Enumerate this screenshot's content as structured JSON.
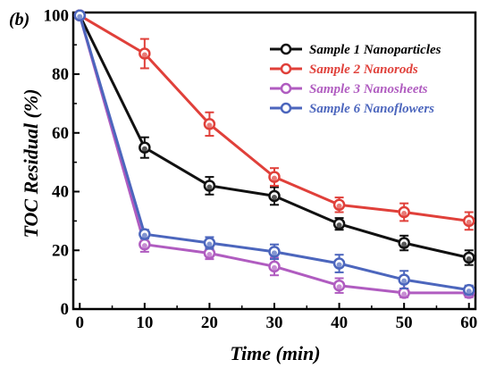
{
  "chart_data": {
    "type": "line",
    "panel_label": "(b)",
    "xlabel": "Time (min)",
    "ylabel": "TOC Residual (%)",
    "xlim": [
      -1,
      61
    ],
    "ylim": [
      0,
      101
    ],
    "xticks": [
      0,
      10,
      20,
      30,
      40,
      50,
      60
    ],
    "yticks": [
      0,
      20,
      40,
      60,
      80,
      100
    ],
    "grid": false,
    "legend_position": "top-right",
    "x": [
      0,
      10,
      20,
      30,
      40,
      50,
      60
    ],
    "series": [
      {
        "name": "Sample 1 Nanoparticles",
        "color": "#111111",
        "values": [
          100,
          55,
          42,
          38.5,
          29,
          22.5,
          17.5
        ],
        "errors": [
          0,
          3.5,
          3,
          3,
          2,
          2.5,
          2.5
        ]
      },
      {
        "name": "Sample 2 Nanorods",
        "color": "#e0403a",
        "values": [
          100,
          87,
          63,
          45,
          35.5,
          33,
          30
        ],
        "errors": [
          0,
          5,
          4,
          3,
          2.5,
          3,
          3
        ]
      },
      {
        "name": "Sample 3 Nanosheets",
        "color": "#b05cc0",
        "values": [
          100,
          22,
          19,
          14.5,
          8,
          5.5,
          5.5
        ],
        "errors": [
          0,
          2.5,
          2,
          3,
          2.5,
          1.5,
          1.5
        ]
      },
      {
        "name": "Sample 6 Nanoflowers",
        "color": "#4c66bd",
        "values": [
          100,
          25.5,
          22.5,
          19.5,
          15.5,
          10,
          6.5
        ],
        "errors": [
          0,
          1.5,
          2,
          2.5,
          3,
          3,
          1.5
        ]
      }
    ]
  }
}
